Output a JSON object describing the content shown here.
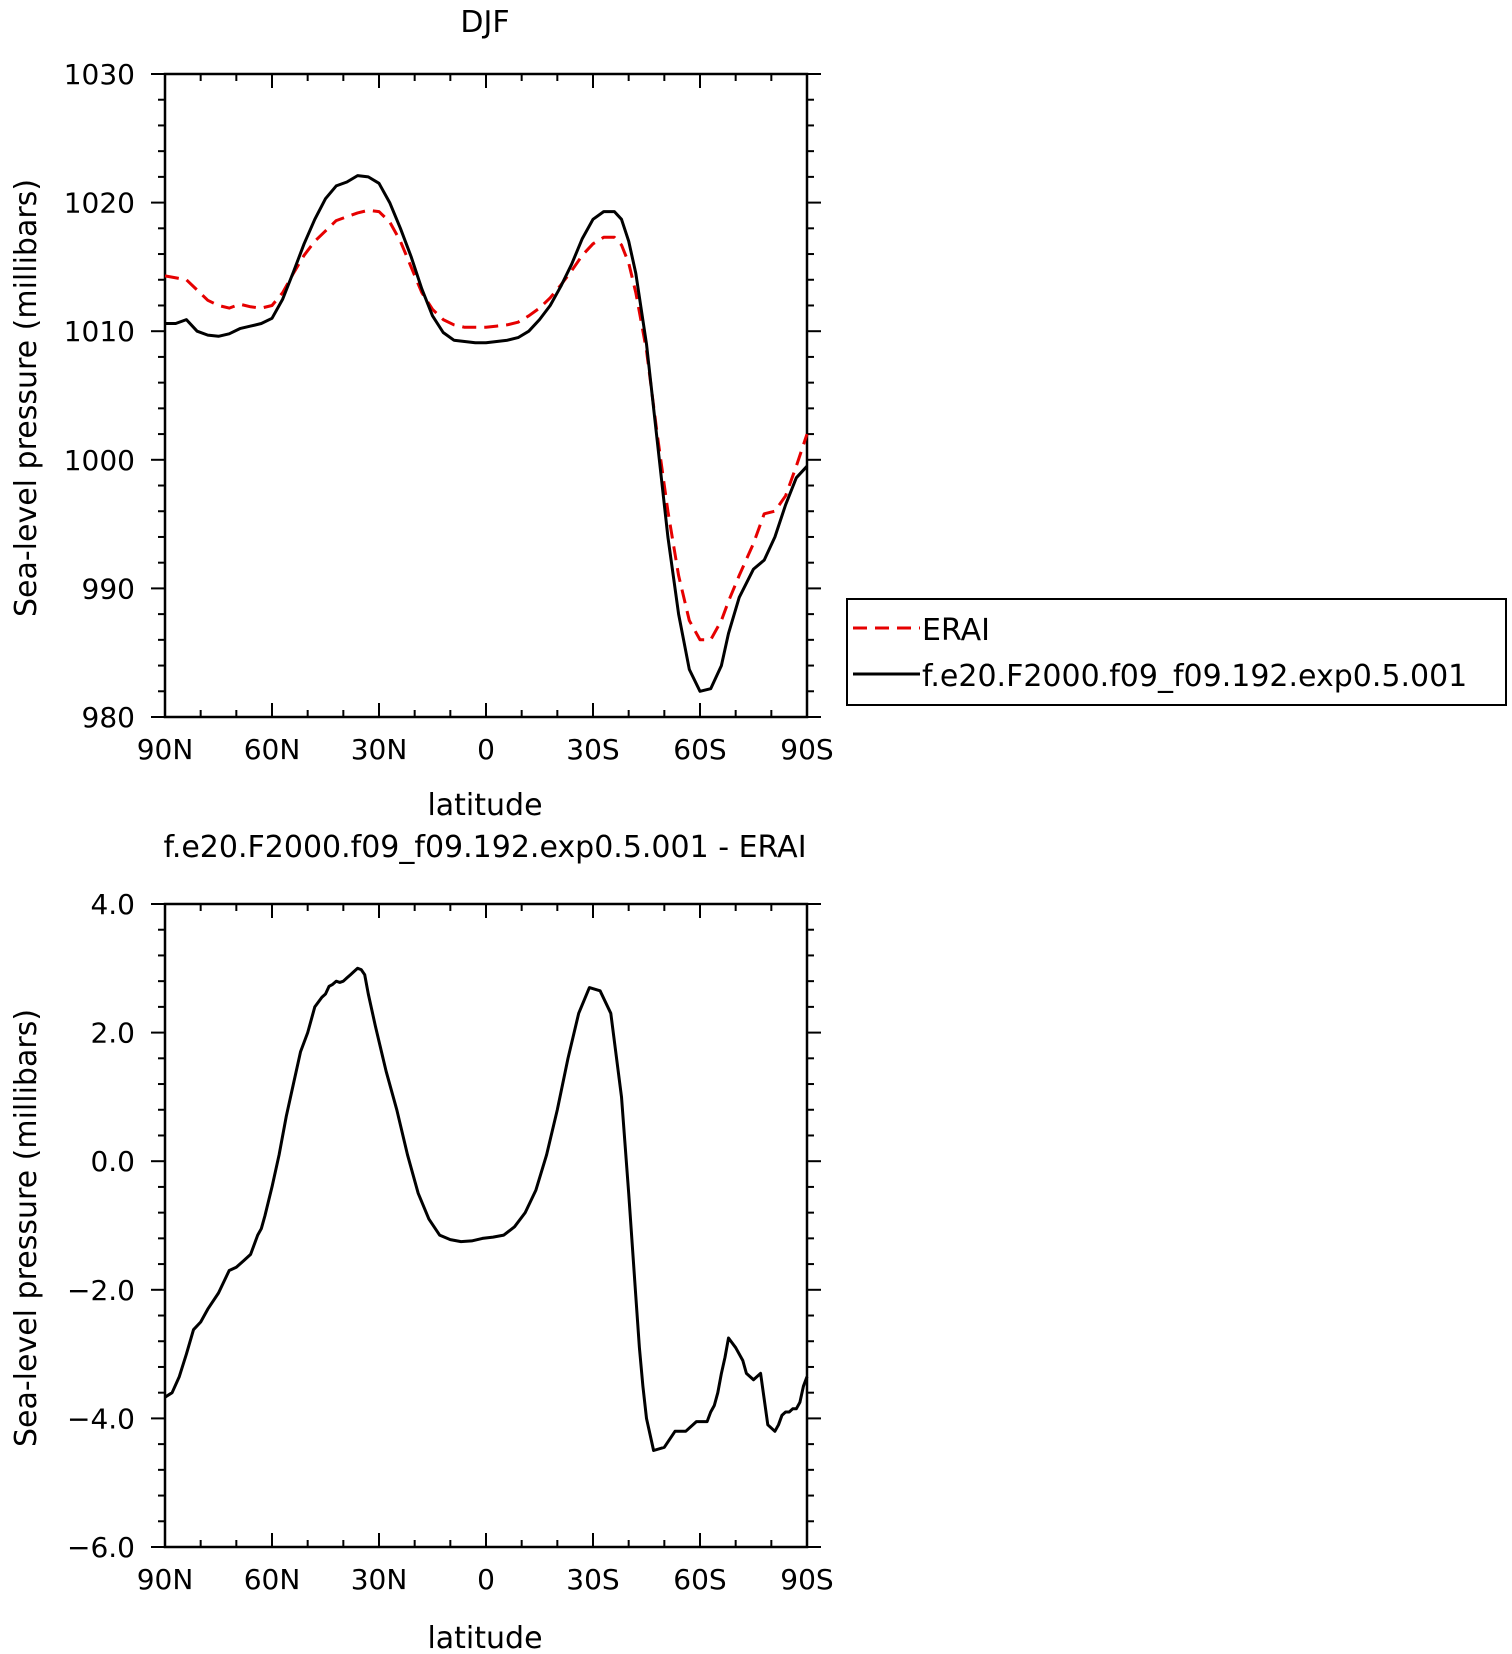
{
  "chart_data": [
    {
      "type": "line",
      "title": "DJF",
      "xlabel": "latitude",
      "ylabel": "Sea-level pressure (millibars)",
      "xlim": [
        90,
        -90
      ],
      "ylim": [
        980,
        1030
      ],
      "xticks": [
        90,
        60,
        30,
        0,
        -30,
        -60,
        -90
      ],
      "xtick_labels": [
        "90N",
        "60N",
        "30N",
        "0",
        "30S",
        "60S",
        "90S"
      ],
      "yticks": [
        980,
        990,
        1000,
        1010,
        1020,
        1030
      ],
      "ytick_labels": [
        "980",
        "990",
        "1000",
        "1010",
        "1020",
        "1030"
      ],
      "legend_position": "right",
      "series": [
        {
          "name": "ERAI",
          "color": "#e60000",
          "dash": "dashed",
          "x": [
            90,
            84,
            81,
            78,
            75,
            72,
            69,
            66,
            63,
            60,
            57,
            54,
            51,
            48,
            45,
            42,
            39,
            36,
            33,
            30,
            27,
            24,
            21,
            18,
            15,
            12,
            9,
            6,
            3,
            0,
            -3,
            -6,
            -9,
            -12,
            -15,
            -18,
            -21,
            -24,
            -27,
            -30,
            -33,
            -36,
            -38,
            -40,
            -42,
            -45,
            -48,
            -51,
            -54,
            -57,
            -60,
            -63,
            -66,
            -68,
            -71,
            -75,
            -78,
            -81,
            -84,
            -87,
            -90
          ],
          "y": [
            1014.3,
            1014.0,
            1013.2,
            1012.4,
            1012.0,
            1011.8,
            1012.1,
            1011.9,
            1011.8,
            1012.0,
            1013.0,
            1014.5,
            1015.9,
            1017.0,
            1017.8,
            1018.6,
            1018.9,
            1019.2,
            1019.4,
            1019.3,
            1018.5,
            1017.0,
            1015.0,
            1013.0,
            1011.7,
            1010.9,
            1010.5,
            1010.3,
            1010.3,
            1010.3,
            1010.4,
            1010.5,
            1010.7,
            1011.2,
            1011.8,
            1012.6,
            1013.6,
            1014.7,
            1015.9,
            1016.8,
            1017.3,
            1017.3,
            1016.7,
            1015.3,
            1013.0,
            1008.5,
            1002.0,
            996.0,
            991.0,
            987.5,
            986.0,
            986.0,
            987.5,
            989.0,
            991.0,
            993.5,
            995.8,
            996.0,
            997.2,
            999.5,
            1002.0
          ]
        },
        {
          "name": "f.e20.F2000.f09_f09.192.exp0.5.001",
          "color": "#000000",
          "dash": "solid",
          "x": [
            90,
            87,
            84,
            81,
            78,
            75,
            72,
            69,
            66,
            63,
            60,
            57,
            54,
            51,
            48,
            45,
            42,
            39,
            36,
            33,
            30,
            27,
            24,
            21,
            18,
            15,
            12,
            9,
            6,
            3,
            0,
            -3,
            -6,
            -9,
            -12,
            -15,
            -18,
            -21,
            -24,
            -27,
            -30,
            -33,
            -36,
            -38,
            -40,
            -42,
            -45,
            -48,
            -51,
            -54,
            -57,
            -60,
            -63,
            -66,
            -68,
            -71,
            -75,
            -78,
            -81,
            -84,
            -87,
            -90
          ],
          "y": [
            1010.6,
            1010.6,
            1010.9,
            1010.0,
            1009.7,
            1009.6,
            1009.8,
            1010.2,
            1010.4,
            1010.6,
            1011.0,
            1012.5,
            1014.6,
            1016.8,
            1018.7,
            1020.3,
            1021.3,
            1021.6,
            1022.1,
            1022.0,
            1021.5,
            1020.0,
            1018.0,
            1015.8,
            1013.3,
            1011.2,
            1009.9,
            1009.3,
            1009.2,
            1009.1,
            1009.1,
            1009.2,
            1009.3,
            1009.5,
            1010.0,
            1010.9,
            1012.0,
            1013.5,
            1015.2,
            1017.2,
            1018.7,
            1019.3,
            1019.3,
            1018.7,
            1017.0,
            1014.5,
            1009.0,
            1001.5,
            994.0,
            988.0,
            983.7,
            982.0,
            982.2,
            984.0,
            986.5,
            989.3,
            991.5,
            992.2,
            994.0,
            996.5,
            998.6,
            999.5
          ]
        }
      ]
    },
    {
      "type": "line",
      "title": "f.e20.F2000.f09_f09.192.exp0.5.001 - ERAI",
      "xlabel": "latitude",
      "ylabel": "Sea-level pressure (millibars)",
      "xlim": [
        90,
        -90
      ],
      "ylim": [
        -6,
        4
      ],
      "xticks": [
        90,
        60,
        30,
        0,
        -30,
        -60,
        -90
      ],
      "xtick_labels": [
        "90N",
        "60N",
        "30N",
        "0",
        "30S",
        "60S",
        "90S"
      ],
      "yticks": [
        -6,
        -4,
        -2,
        0,
        2,
        4
      ],
      "ytick_labels": [
        "−6.0",
        "−4.0",
        "−2.0",
        "0.0",
        "2.0",
        "4.0"
      ],
      "series": [
        {
          "color": "#000000",
          "dash": "solid",
          "x": [
            90,
            88,
            86,
            84,
            82,
            80,
            78,
            75,
            72,
            70,
            68,
            66,
            64,
            63,
            62,
            60,
            58,
            56,
            54,
            52,
            50,
            48,
            46,
            45,
            44,
            43,
            42,
            41,
            40,
            39,
            38,
            37,
            36,
            35,
            34,
            33,
            31,
            28,
            25,
            22,
            19,
            16,
            13,
            10,
            7,
            4,
            1,
            -2,
            -5,
            -8,
            -11,
            -14,
            -17,
            -20,
            -23,
            -26,
            -29,
            -32,
            -35,
            -38,
            -40,
            -42,
            -43,
            -44,
            -45,
            -47,
            -50,
            -53,
            -56,
            -59,
            -62,
            -63,
            -64,
            -65,
            -66,
            -67,
            -68,
            -70,
            -72,
            -73,
            -75,
            -77,
            -79,
            -81,
            -82,
            -83,
            -84,
            -85,
            -86,
            -87,
            -88,
            -89,
            -90
          ],
          "y": [
            -3.67,
            -3.6,
            -3.35,
            -3.0,
            -2.62,
            -2.5,
            -2.3,
            -2.05,
            -1.7,
            -1.65,
            -1.55,
            -1.45,
            -1.15,
            -1.05,
            -0.85,
            -0.4,
            0.1,
            0.7,
            1.2,
            1.7,
            2.0,
            2.4,
            2.55,
            2.6,
            2.72,
            2.75,
            2.8,
            2.78,
            2.8,
            2.85,
            2.9,
            2.95,
            3.0,
            2.98,
            2.9,
            2.6,
            2.1,
            1.4,
            0.8,
            0.1,
            -0.5,
            -0.9,
            -1.15,
            -1.22,
            -1.25,
            -1.24,
            -1.2,
            -1.18,
            -1.15,
            -1.02,
            -0.8,
            -0.45,
            0.1,
            0.8,
            1.6,
            2.3,
            2.7,
            2.65,
            2.3,
            1.0,
            -0.5,
            -2.1,
            -2.9,
            -3.5,
            -4.0,
            -4.5,
            -4.45,
            -4.2,
            -4.2,
            -4.05,
            -4.05,
            -3.9,
            -3.8,
            -3.6,
            -3.3,
            -3.05,
            -2.75,
            -2.9,
            -3.1,
            -3.3,
            -3.4,
            -3.3,
            -4.1,
            -4.2,
            -4.1,
            -3.95,
            -3.9,
            -3.9,
            -3.85,
            -3.85,
            -3.75,
            -3.5,
            -3.35
          ]
        }
      ]
    }
  ],
  "legend": {
    "entries": [
      "ERAI",
      "f.e20.F2000.f09_f09.192.exp0.5.001"
    ]
  }
}
